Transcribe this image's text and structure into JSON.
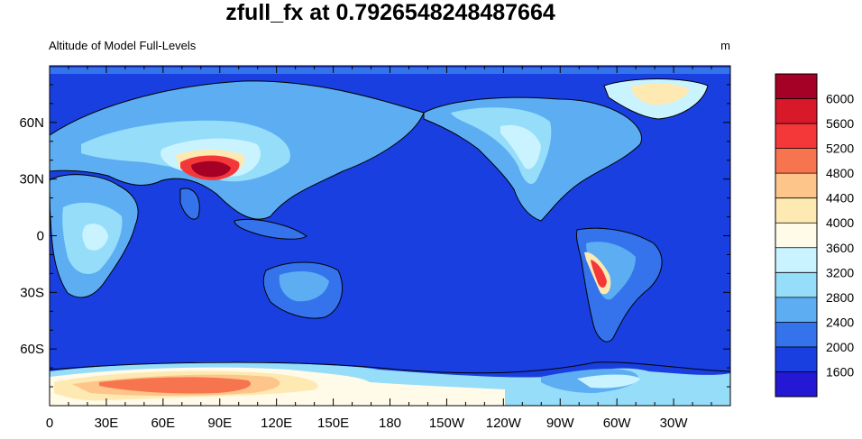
{
  "title": "zfull_fx at 0.7926548248487664",
  "subtitle_left": "Altitude of Model Full-Levels",
  "subtitle_right": "m",
  "map": {
    "projection": "cylindrical-equidistant",
    "center_lon": 180,
    "ocean_color": "#1a3fe0",
    "coastline_color": "#000000"
  },
  "chart_data": {
    "type": "heatmap",
    "x_ticks": [
      {
        "lon": 0,
        "label": "0"
      },
      {
        "lon": 30,
        "label": "30E"
      },
      {
        "lon": 60,
        "label": "60E"
      },
      {
        "lon": 90,
        "label": "90E"
      },
      {
        "lon": 120,
        "label": "120E"
      },
      {
        "lon": 150,
        "label": "150E"
      },
      {
        "lon": 180,
        "label": "180"
      },
      {
        "lon": 210,
        "label": "150W"
      },
      {
        "lon": 240,
        "label": "120W"
      },
      {
        "lon": 270,
        "label": "90W"
      },
      {
        "lon": 300,
        "label": "60W"
      },
      {
        "lon": 330,
        "label": "30W"
      }
    ],
    "y_ticks": [
      {
        "lat": 60,
        "label": "60N"
      },
      {
        "lat": 30,
        "label": "30N"
      },
      {
        "lat": 0,
        "label": "0"
      },
      {
        "lat": -30,
        "label": "30S"
      },
      {
        "lat": -60,
        "label": "60S"
      }
    ],
    "lon_range": [
      0,
      360
    ],
    "lat_range": [
      -90,
      90
    ],
    "colorbar": {
      "labels": [
        "6000",
        "5600",
        "5200",
        "4800",
        "4400",
        "4000",
        "3600",
        "3200",
        "2800",
        "2400",
        "2000",
        "1600"
      ],
      "colors": [
        "#a50026",
        "#d7192a",
        "#f4383a",
        "#f6754f",
        "#fdc58a",
        "#fee9b2",
        "#fffbe8",
        "#c8f3ff",
        "#96ddfa",
        "#5cadf2",
        "#3473ec",
        "#1a3fe0",
        "#2418d4"
      ]
    },
    "regions": [
      {
        "name": "antarctica",
        "level": 4
      },
      {
        "name": "tibetan-plateau",
        "level": 0
      },
      {
        "name": "andes",
        "level": 2
      },
      {
        "name": "greenland",
        "level": 5
      }
    ]
  }
}
